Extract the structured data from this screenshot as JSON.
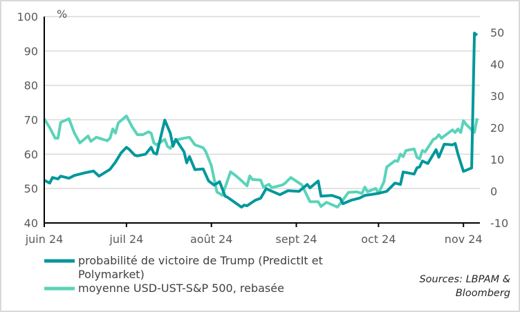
{
  "chart_data": {
    "type": "line",
    "title": "",
    "left_axis": {
      "unit_label": "%",
      "ylim": [
        40,
        100
      ],
      "ticks": [
        "100",
        "90",
        "80",
        "70",
        "60",
        "50",
        "40"
      ]
    },
    "right_axis": {
      "ylim": [
        -10,
        55
      ],
      "ticks": [
        "50",
        "40",
        "30",
        "20",
        "10",
        "0",
        "-10"
      ]
    },
    "xlim": [
      "2024-06-01",
      "2024-11-07"
    ],
    "x_ticks": [
      {
        "date": "2024-06-01",
        "label": "juin 24"
      },
      {
        "date": "2024-07-01",
        "label": "juil 24"
      },
      {
        "date": "2024-08-01",
        "label": "août 24"
      },
      {
        "date": "2024-09-01",
        "label": "sept 24"
      },
      {
        "date": "2024-10-01",
        "label": "oct 24"
      },
      {
        "date": "2024-11-01",
        "label": "nov 24"
      }
    ],
    "grid": "horizontal",
    "legend_placement": "bottom-left",
    "series": [
      {
        "name": "probabilité de victoire de Trump (PredictIt et Polymarket)",
        "axis": "left",
        "color": "#00979b",
        "points": [
          [
            "2024-06-01",
            52.4
          ],
          [
            "2024-06-03",
            51.6
          ],
          [
            "2024-06-04",
            53.2
          ],
          [
            "2024-06-06",
            52.8
          ],
          [
            "2024-06-07",
            53.6
          ],
          [
            "2024-06-10",
            53.0
          ],
          [
            "2024-06-12",
            53.8
          ],
          [
            "2024-06-14",
            54.2
          ],
          [
            "2024-06-16",
            54.6
          ],
          [
            "2024-06-19",
            55.1
          ],
          [
            "2024-06-21",
            53.6
          ],
          [
            "2024-06-25",
            55.6
          ],
          [
            "2024-06-27",
            57.7
          ],
          [
            "2024-06-29",
            60.3
          ],
          [
            "2024-07-01",
            62.0
          ],
          [
            "2024-07-02",
            61.4
          ],
          [
            "2024-07-04",
            59.7
          ],
          [
            "2024-07-05",
            59.5
          ],
          [
            "2024-07-08",
            60.0
          ],
          [
            "2024-07-10",
            62.0
          ],
          [
            "2024-07-11",
            60.3
          ],
          [
            "2024-07-12",
            60.0
          ],
          [
            "2024-07-15",
            69.9
          ],
          [
            "2024-07-17",
            66.1
          ],
          [
            "2024-07-18",
            62.3
          ],
          [
            "2024-07-19",
            64.3
          ],
          [
            "2024-07-22",
            60.7
          ],
          [
            "2024-07-23",
            57.5
          ],
          [
            "2024-07-24",
            59.3
          ],
          [
            "2024-07-26",
            55.5
          ],
          [
            "2024-07-29",
            55.7
          ],
          [
            "2024-07-31",
            52.2
          ],
          [
            "2024-08-02",
            51.0
          ],
          [
            "2024-08-04",
            52.0
          ],
          [
            "2024-08-06",
            47.8
          ],
          [
            "2024-08-07",
            47.4
          ],
          [
            "2024-08-12",
            44.6
          ],
          [
            "2024-08-13",
            45.2
          ],
          [
            "2024-08-14",
            45.0
          ],
          [
            "2024-08-17",
            46.6
          ],
          [
            "2024-08-19",
            47.2
          ],
          [
            "2024-08-21",
            50.0
          ],
          [
            "2024-08-22",
            49.6
          ],
          [
            "2024-08-26",
            48.2
          ],
          [
            "2024-08-29",
            49.4
          ],
          [
            "2024-09-02",
            49.2
          ],
          [
            "2024-09-05",
            51.2
          ],
          [
            "2024-09-06",
            50.2
          ],
          [
            "2024-09-09",
            52.2
          ],
          [
            "2024-09-10",
            47.8
          ],
          [
            "2024-09-14",
            48.0
          ],
          [
            "2024-09-17",
            47.2
          ],
          [
            "2024-09-18",
            45.6
          ],
          [
            "2024-09-21",
            46.6
          ],
          [
            "2024-09-24",
            47.2
          ],
          [
            "2024-09-26",
            48.0
          ],
          [
            "2024-10-01",
            48.6
          ],
          [
            "2024-10-04",
            49.2
          ],
          [
            "2024-10-07",
            51.6
          ],
          [
            "2024-10-09",
            51.2
          ],
          [
            "2024-10-10",
            54.8
          ],
          [
            "2024-10-14",
            54.2
          ],
          [
            "2024-10-15",
            56.0
          ],
          [
            "2024-10-16",
            56.3
          ],
          [
            "2024-10-17",
            58.0
          ],
          [
            "2024-10-19",
            57.3
          ],
          [
            "2024-10-22",
            61.3
          ],
          [
            "2024-10-23",
            59.1
          ],
          [
            "2024-10-25",
            62.9
          ],
          [
            "2024-10-28",
            62.7
          ],
          [
            "2024-10-29",
            63.1
          ],
          [
            "2024-10-30",
            60.0
          ],
          [
            "2024-11-01",
            55.0
          ],
          [
            "2024-11-04",
            56.0
          ],
          [
            "2024-11-05",
            95.2
          ],
          [
            "2024-11-06",
            94.6
          ]
        ]
      },
      {
        "name": "moyenne USD-UST-S&P 500, rebasée",
        "axis": "right",
        "color": "#5ad3b9",
        "points": [
          [
            "2024-06-01",
            22.8
          ],
          [
            "2024-06-03",
            20.0
          ],
          [
            "2024-06-05",
            16.7
          ],
          [
            "2024-06-06",
            16.7
          ],
          [
            "2024-06-07",
            21.7
          ],
          [
            "2024-06-10",
            22.8
          ],
          [
            "2024-06-12",
            18.3
          ],
          [
            "2024-06-14",
            15.2
          ],
          [
            "2024-06-17",
            17.4
          ],
          [
            "2024-06-18",
            15.7
          ],
          [
            "2024-06-20",
            17.0
          ],
          [
            "2024-06-24",
            15.9
          ],
          [
            "2024-06-25",
            16.7
          ],
          [
            "2024-06-26",
            19.6
          ],
          [
            "2024-06-27",
            18.3
          ],
          [
            "2024-06-28",
            21.5
          ],
          [
            "2024-07-01",
            23.7
          ],
          [
            "2024-07-03",
            20.4
          ],
          [
            "2024-07-05",
            17.8
          ],
          [
            "2024-07-07",
            17.8
          ],
          [
            "2024-07-09",
            18.7
          ],
          [
            "2024-07-10",
            18.3
          ],
          [
            "2024-07-11",
            15.2
          ],
          [
            "2024-07-12",
            14.6
          ],
          [
            "2024-07-15",
            16.3
          ],
          [
            "2024-07-16",
            14.1
          ],
          [
            "2024-07-17",
            13.5
          ],
          [
            "2024-07-19",
            16.1
          ],
          [
            "2024-07-22",
            16.7
          ],
          [
            "2024-07-24",
            17.0
          ],
          [
            "2024-07-26",
            14.6
          ],
          [
            "2024-07-29",
            13.7
          ],
          [
            "2024-07-30",
            12.4
          ],
          [
            "2024-08-01",
            8.0
          ],
          [
            "2024-08-03",
            -0.2
          ],
          [
            "2024-08-05",
            -1.3
          ],
          [
            "2024-08-08",
            6.1
          ],
          [
            "2024-08-10",
            4.8
          ],
          [
            "2024-08-12",
            3.3
          ],
          [
            "2024-08-14",
            1.7
          ],
          [
            "2024-08-15",
            4.8
          ],
          [
            "2024-08-16",
            3.7
          ],
          [
            "2024-08-19",
            3.5
          ],
          [
            "2024-08-20",
            1.3
          ],
          [
            "2024-08-22",
            2.2
          ],
          [
            "2024-08-23",
            1.1
          ],
          [
            "2024-08-27",
            2.0
          ],
          [
            "2024-08-28",
            2.6
          ],
          [
            "2024-08-30",
            4.3
          ],
          [
            "2024-09-03",
            2.0
          ],
          [
            "2024-09-06",
            -3.3
          ],
          [
            "2024-09-09",
            -3.3
          ],
          [
            "2024-09-10",
            -4.8
          ],
          [
            "2024-09-12",
            -3.5
          ],
          [
            "2024-09-16",
            -5.0
          ],
          [
            "2024-09-18",
            -2.8
          ],
          [
            "2024-09-20",
            -0.4
          ],
          [
            "2024-09-23",
            -0.2
          ],
          [
            "2024-09-25",
            -0.7
          ],
          [
            "2024-09-26",
            1.3
          ],
          [
            "2024-09-27",
            -0.2
          ],
          [
            "2024-09-30",
            0.9
          ],
          [
            "2024-10-01",
            -0.7
          ],
          [
            "2024-10-03",
            3.0
          ],
          [
            "2024-10-04",
            7.6
          ],
          [
            "2024-10-07",
            9.6
          ],
          [
            "2024-10-08",
            9.4
          ],
          [
            "2024-10-09",
            11.7
          ],
          [
            "2024-10-10",
            10.9
          ],
          [
            "2024-10-11",
            12.8
          ],
          [
            "2024-10-14",
            13.3
          ],
          [
            "2024-10-15",
            10.7
          ],
          [
            "2024-10-16",
            10.2
          ],
          [
            "2024-10-17",
            12.8
          ],
          [
            "2024-10-18",
            12.4
          ],
          [
            "2024-10-21",
            16.3
          ],
          [
            "2024-10-22",
            16.7
          ],
          [
            "2024-10-23",
            17.8
          ],
          [
            "2024-10-24",
            16.7
          ],
          [
            "2024-10-25",
            17.4
          ],
          [
            "2024-10-28",
            19.3
          ],
          [
            "2024-10-29",
            18.5
          ],
          [
            "2024-10-30",
            19.6
          ],
          [
            "2024-10-31",
            18.5
          ],
          [
            "2024-11-01",
            22.2
          ],
          [
            "2024-11-02",
            21.0
          ],
          [
            "2024-11-05",
            18.5
          ],
          [
            "2024-11-06",
            23.0
          ]
        ]
      }
    ]
  },
  "legend": {
    "item1": "probabilité de victoire de Trump (PredictIt et Polymarket)",
    "item2": "moyenne USD-UST-S&P 500, rebasée"
  },
  "source": {
    "line1": "Sources: LBPAM &",
    "line2": "Bloomberg"
  }
}
